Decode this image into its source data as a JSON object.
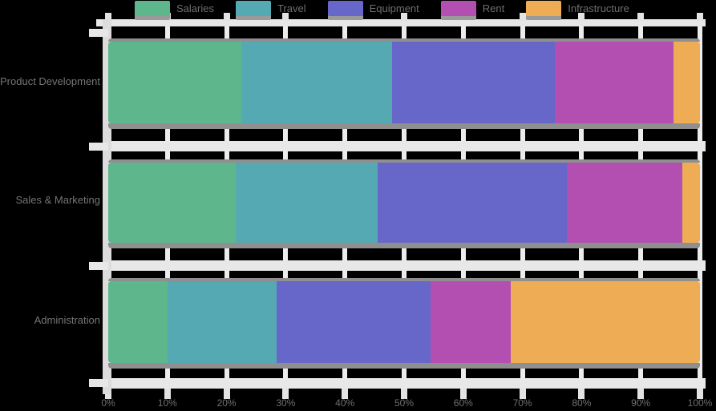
{
  "chart_data": {
    "type": "bar",
    "orientation": "horizontal",
    "stacked": true,
    "title": "",
    "xlabel": "",
    "ylabel": "",
    "legend_position": "top",
    "grid": true,
    "categories": [
      "Product Development",
      "Sales & Marketing",
      "Administration"
    ],
    "series": [
      {
        "name": "Salaries",
        "color": "#5eb78c",
        "values": [
          22.5,
          21.5,
          10.0
        ]
      },
      {
        "name": "Travel",
        "color": "#55a9b2",
        "values": [
          25.5,
          24.0,
          18.5
        ]
      },
      {
        "name": "Equipment",
        "color": "#6766c9",
        "values": [
          27.5,
          32.0,
          26.0
        ]
      },
      {
        "name": "Rent",
        "color": "#b44fb2",
        "values": [
          20.0,
          19.5,
          13.5
        ]
      },
      {
        "name": "Infrastructure",
        "color": "#eead55",
        "values": [
          4.5,
          3.0,
          32.0
        ]
      }
    ],
    "x_axis": {
      "range": [
        0,
        100
      ],
      "tick_labels": [
        "0%",
        "10%",
        "20%",
        "30%",
        "40%",
        "50%",
        "60%",
        "70%",
        "80%",
        "90%",
        "100%"
      ]
    }
  },
  "style": {
    "background": "#000000",
    "axis_frame_color": "#e7e7e7",
    "gridline_color": "#ececec",
    "bar_shadow_color": "#8f8f8f",
    "legend_shadow_color": "#9a9a9a",
    "text_color": "#6f6f6f"
  }
}
